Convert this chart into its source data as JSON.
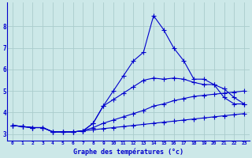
{
  "xlabel": "Graphe des températures (°c)",
  "background_color": "#cce8e8",
  "grid_color": "#aacccc",
  "line_color": "#0000cc",
  "xlim": [
    -0.5,
    23.5
  ],
  "ylim": [
    2.7,
    9.1
  ],
  "yticks": [
    3,
    4,
    5,
    6,
    7,
    8
  ],
  "xticks": [
    0,
    1,
    2,
    3,
    4,
    5,
    6,
    7,
    8,
    9,
    10,
    11,
    12,
    13,
    14,
    15,
    16,
    17,
    18,
    19,
    20,
    21,
    22,
    23
  ],
  "line1_x": [
    0,
    1,
    2,
    3,
    4,
    5,
    6,
    7,
    8,
    9,
    10,
    11,
    12,
    13,
    14,
    15,
    16,
    17,
    18,
    19,
    20,
    21,
    22,
    23
  ],
  "line1_y": [
    3.4,
    3.35,
    3.3,
    3.3,
    3.1,
    3.1,
    3.1,
    3.15,
    3.2,
    3.25,
    3.3,
    3.35,
    3.4,
    3.45,
    3.5,
    3.55,
    3.6,
    3.65,
    3.7,
    3.75,
    3.8,
    3.85,
    3.9,
    3.95
  ],
  "line2_x": [
    0,
    1,
    2,
    3,
    4,
    5,
    6,
    7,
    8,
    9,
    10,
    11,
    12,
    13,
    14,
    15,
    16,
    17,
    18,
    19,
    20,
    21,
    22,
    23
  ],
  "line2_y": [
    3.4,
    3.35,
    3.3,
    3.3,
    3.1,
    3.1,
    3.1,
    3.15,
    3.3,
    3.5,
    3.65,
    3.8,
    3.95,
    4.1,
    4.3,
    4.4,
    4.55,
    4.65,
    4.75,
    4.8,
    4.85,
    4.9,
    4.95,
    5.0
  ],
  "line3_x": [
    0,
    1,
    2,
    3,
    4,
    5,
    6,
    7,
    8,
    9,
    10,
    11,
    12,
    13,
    14,
    15,
    16,
    17,
    18,
    19,
    20,
    21,
    22,
    23
  ],
  "line3_y": [
    3.4,
    3.35,
    3.3,
    3.3,
    3.1,
    3.1,
    3.1,
    3.15,
    3.5,
    4.3,
    4.6,
    4.9,
    5.2,
    5.5,
    5.6,
    5.55,
    5.6,
    5.55,
    5.4,
    5.3,
    5.3,
    5.1,
    4.7,
    4.4
  ],
  "line4_x": [
    0,
    1,
    2,
    3,
    4,
    5,
    6,
    7,
    8,
    9,
    10,
    11,
    12,
    13,
    14,
    15,
    16,
    17,
    18,
    19,
    20,
    21,
    22,
    23
  ],
  "line4_y": [
    3.4,
    3.35,
    3.3,
    3.3,
    3.1,
    3.1,
    3.1,
    3.15,
    3.5,
    4.3,
    5.0,
    5.7,
    6.4,
    6.8,
    8.5,
    7.85,
    7.0,
    6.4,
    5.55,
    5.55,
    5.3,
    4.7,
    4.4,
    4.4
  ]
}
